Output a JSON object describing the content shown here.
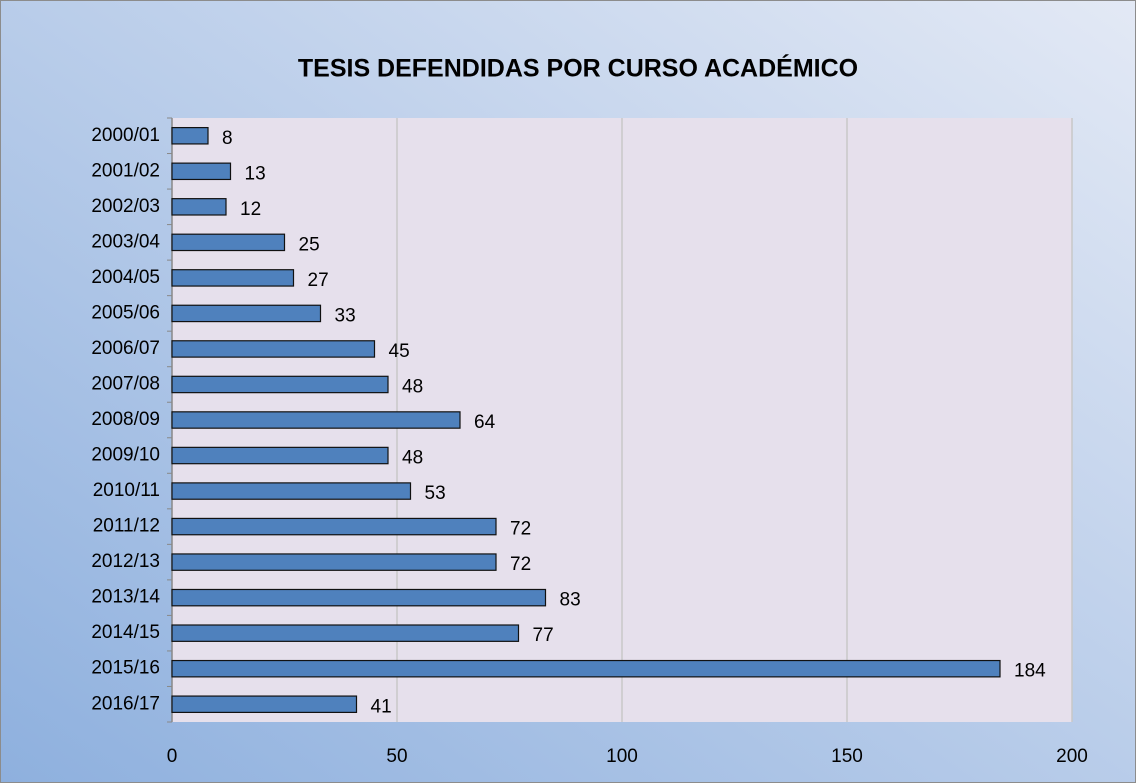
{
  "chart_data": {
    "type": "bar",
    "orientation": "horizontal",
    "title": "TESIS DEFENDIDAS POR CURSO ACADÉMICO",
    "categories": [
      "2000/01",
      "2001/02",
      "2002/03",
      "2003/04",
      "2004/05",
      "2005/06",
      "2006/07",
      "2007/08",
      "2008/09",
      "2009/10",
      "2010/11",
      "2011/12",
      "2012/13",
      "2013/14",
      "2014/15",
      "2015/16",
      "2016/17"
    ],
    "values": [
      8,
      13,
      12,
      25,
      27,
      33,
      45,
      48,
      64,
      48,
      53,
      72,
      72,
      83,
      77,
      184,
      41
    ],
    "color": "#4f81bd",
    "xlim": [
      0,
      200
    ],
    "xticks": [
      0,
      50,
      100,
      150,
      200
    ],
    "grid": true
  }
}
